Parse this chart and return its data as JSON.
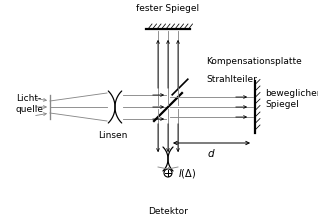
{
  "bg_color": "#ffffff",
  "line_color": "#000000",
  "gray_color": "#888888",
  "labels": {
    "lichtquelle": "Licht-\nquelle",
    "linsen": "Linsen",
    "fester_spiegel": "fester Spiegel",
    "kompensationsplatte": "Kompensationsplatte",
    "strahlteiler": "Strahlteiler",
    "beweglicher_spiegel": "beweglicher\nSpiegel",
    "detektor": "Detektor",
    "I_delta": "$I(\\Delta)$",
    "d": "$d$"
  },
  "fontsize": 6.5
}
